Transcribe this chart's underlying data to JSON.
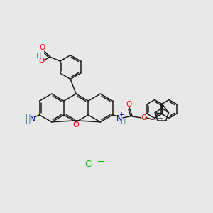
{
  "background_color": "#e8e8e8",
  "figsize": [
    3.0,
    3.0
  ],
  "dpi": 100,
  "colors": {
    "bond": "#1a1a1a",
    "O": "#ff0000",
    "N": "#0000cc",
    "Cl": "#00bb00",
    "H": "#4a8a8a"
  },
  "lw": 1.1
}
